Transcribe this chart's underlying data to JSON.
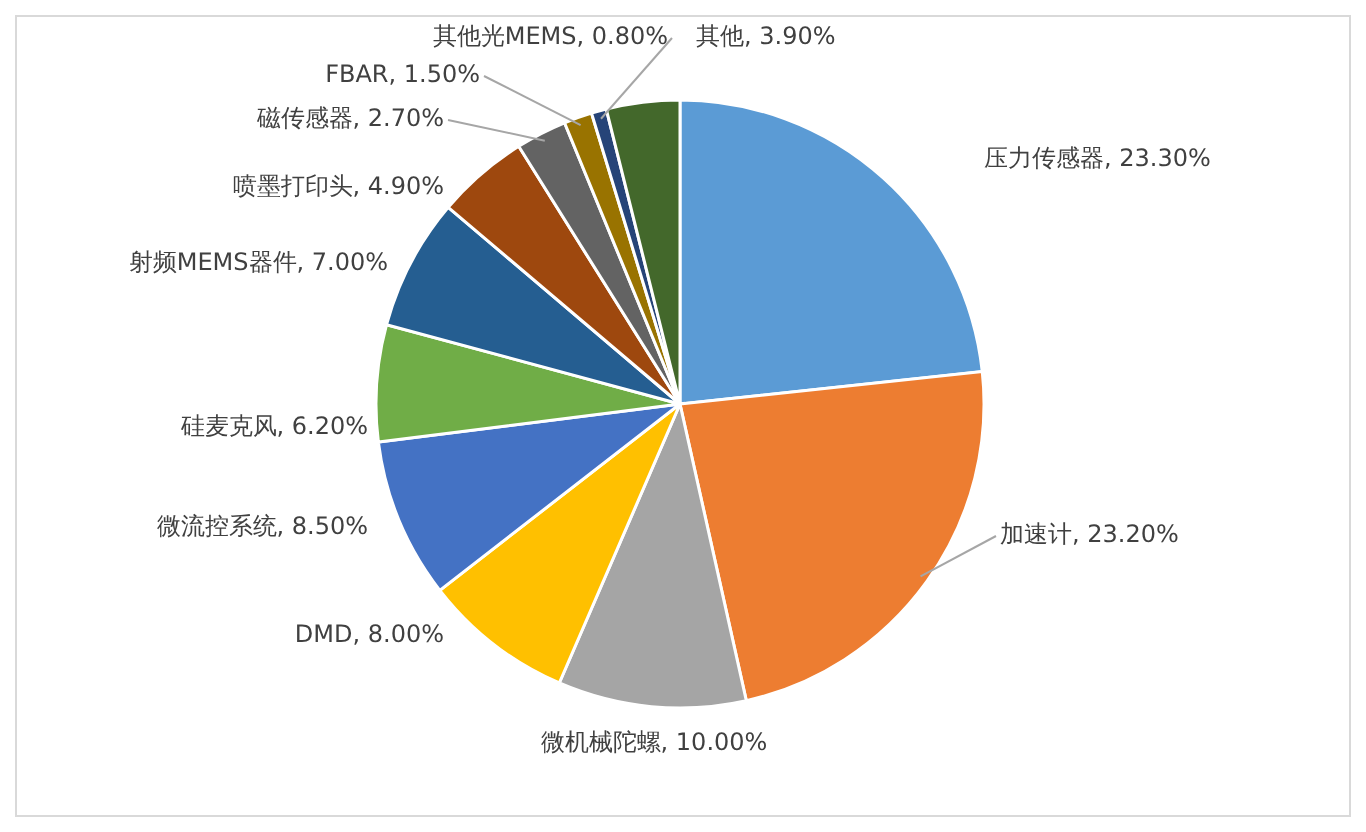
{
  "chart_data": {
    "type": "pie",
    "categories": [
      "压力传感器",
      "加速计",
      "微机械陀螺",
      "DMD",
      "微流控系统",
      "硅麦克风",
      "射频MEMS器件",
      "喷墨打印头",
      "磁传感器",
      "FBAR",
      "其他光MEMS",
      "其他"
    ],
    "values": [
      23.3,
      23.2,
      10.0,
      8.0,
      8.5,
      6.2,
      7.0,
      4.9,
      2.7,
      1.5,
      0.8,
      3.9
    ],
    "value_labels": [
      "23.30%",
      "23.20%",
      "10.00%",
      "8.00%",
      "8.50%",
      "6.20%",
      "7.00%",
      "4.90%",
      "2.70%",
      "1.50%",
      "0.80%",
      "3.90%"
    ],
    "colors": [
      "#5b9bd5",
      "#ed7d31",
      "#a5a5a5",
      "#ffc000",
      "#4472c4",
      "#70ad47",
      "#255e91",
      "#9e480e",
      "#636363",
      "#997300",
      "#264478",
      "#43682b"
    ],
    "legend": false
  }
}
